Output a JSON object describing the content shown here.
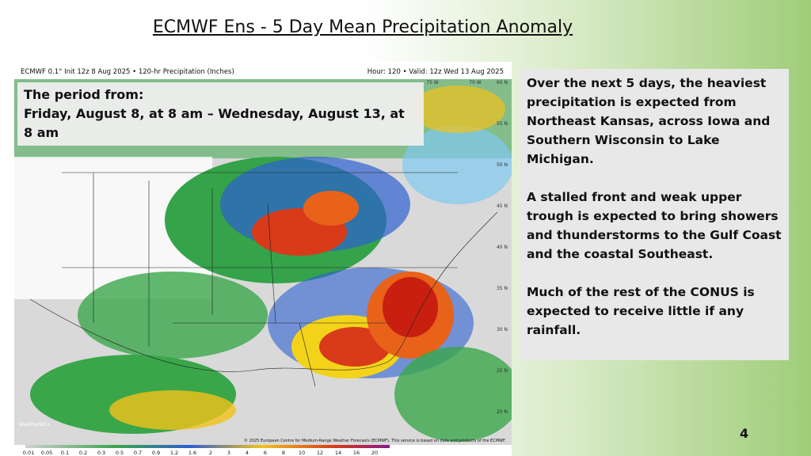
{
  "slide": {
    "title": "ECMWF Ens - 5 Day Mean Precipitation Anomaly",
    "page_number": "4"
  },
  "map": {
    "header_left": "ECMWF 0.1° Init 12z 8 Aug 2025 • 120-hr Precipitation (Inches)",
    "header_right": "Hour: 120 • Valid: 12z Wed 13 Aug 2025",
    "credit": "© 2025 European Centre for Medium-Range Weather Forecasts (ECMWF). This service is based on data and products of the ECMWF.",
    "watermark": "WeatherBELL",
    "lon_labels": [
      "75 W",
      "70 W"
    ],
    "lat_labels": [
      "60 N",
      "55 N",
      "50 N",
      "45 N",
      "40 N",
      "35 N",
      "30 N",
      "25 N",
      "20 N"
    ],
    "colorbar_labels": [
      "0.01",
      "0.05",
      "0.1",
      "0.2",
      "0.3",
      "0.5",
      "0.7",
      "0.9",
      "1.2",
      "1.6",
      "2",
      "3",
      "4",
      "6",
      "8",
      "10",
      "12",
      "14",
      "16",
      "20"
    ]
  },
  "period_box": {
    "heading": "The period from:",
    "text": "Friday, August 8, at 8 am – Wednesday, August 13, at 8 am"
  },
  "summary": {
    "paragraphs": [
      "Over the next 5 days, the heaviest precipitation is expected from Northeast Kansas, across Iowa and Southern  Wisconsin to Lake Michigan.",
      "A stalled front and weak upper trough is expected to bring showers and thunderstorms to the Gulf Coast and the coastal Southeast.",
      "Much of the rest of the CONUS is expected to receive little if any rainfall."
    ]
  }
}
